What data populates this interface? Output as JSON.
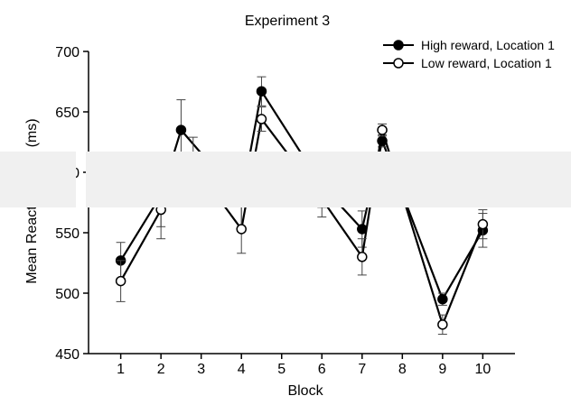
{
  "chart_data": {
    "type": "line",
    "title": "Experiment 3",
    "xlabel": "Block",
    "ylabel": "Mean Reaction Time (ms)",
    "ylim": [
      450,
      700
    ],
    "yticks": [
      450,
      500,
      550,
      600,
      650,
      700
    ],
    "categories": [
      "1",
      "2",
      "3",
      "4",
      "5",
      "6",
      "7",
      "8",
      "9",
      "10"
    ],
    "legend_position": "top-right",
    "series": [
      {
        "name": "High reward, Location 1",
        "marker": "filled-circle",
        "x": [
          1,
          2,
          2.5,
          4,
          4.5,
          6,
          7,
          7.5,
          9,
          10
        ],
        "values": [
          527,
          581,
          635,
          577,
          667,
          589,
          553,
          626,
          495,
          552
        ],
        "error": [
          15,
          26,
          25,
          26,
          12,
          18,
          15,
          5,
          5,
          14
        ]
      },
      {
        "name": "Low reward, Location 1",
        "marker": "open-circle",
        "x": [
          1,
          2,
          2.8,
          4,
          4.5,
          6,
          7,
          7.5,
          9,
          10
        ],
        "values": [
          510,
          569,
          607,
          553,
          644,
          578,
          530,
          635,
          474,
          557
        ],
        "error": [
          17,
          24,
          22,
          20,
          10,
          15,
          15,
          5,
          8,
          12
        ]
      }
    ]
  }
}
